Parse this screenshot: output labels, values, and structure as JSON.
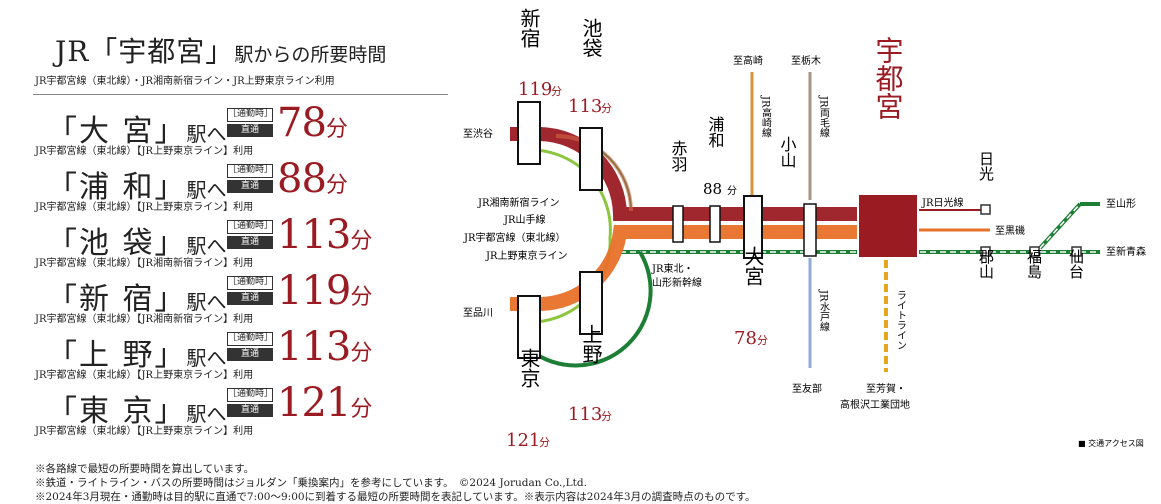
{
  "header": {
    "title_main": "JR「宇都宮」",
    "title_rest": "駅からの所要時間",
    "subtitle": "JR宇都宮線（東北線）・JR湘南新宿ライン・JR上野東京ライン利用"
  },
  "destinations": [
    {
      "name": "「大 宮」",
      "eki": "駅へ",
      "badge_top": "［通勤時］",
      "badge_bottom": "直通",
      "minutes": "78",
      "unit": "分",
      "via": "JR宇都宮線（東北線）【JR上野東京ライン】利用"
    },
    {
      "name": "「浦 和」",
      "eki": "駅へ",
      "badge_top": "［通勤時］",
      "badge_bottom": "直通",
      "minutes": "88",
      "unit": "分",
      "via": "JR宇都宮線（東北線）【JR上野東京ライン】利用"
    },
    {
      "name": "「池 袋」",
      "eki": "駅へ",
      "badge_top": "［通勤時］",
      "badge_bottom": "直通",
      "minutes": "113",
      "unit": "分",
      "via": "JR宇都宮線（東北線）【JR湘南新宿ライン】利用"
    },
    {
      "name": "「新 宿」",
      "eki": "駅へ",
      "badge_top": "［通勤時］",
      "badge_bottom": "直通",
      "minutes": "119",
      "unit": "分",
      "via": "JR宇都宮線（東北線）【JR湘南新宿ライン】利用"
    },
    {
      "name": "「上 野」",
      "eki": "駅へ",
      "badge_top": "［通勤時］",
      "badge_bottom": "直通",
      "minutes": "113",
      "unit": "分",
      "via": "JR宇都宮線（東北線）【JR上野東京ライン】利用"
    },
    {
      "name": "「東 京」",
      "eki": "駅へ",
      "badge_top": "［通勤時］",
      "badge_bottom": "直通",
      "minutes": "121",
      "unit": "分",
      "via": "JR宇都宮線（東北線）【JR上野東京ライン】利用"
    }
  ],
  "map": {
    "utsunomiya": "宇都宮",
    "stations": {
      "shinjuku": "新宿",
      "shinjuku_min": "119",
      "ikebukuro": "池袋",
      "ikebukuro_min": "113",
      "tokyo": "東京",
      "tokyo_min": "121",
      "ueno": "上野",
      "ueno_min": "113",
      "akabane": "赤羽",
      "urawa": "浦和",
      "urawa_min": "88",
      "omiya": "大宮",
      "omiya_min": "78",
      "oyama": "小山",
      "nikko": "日光",
      "koriyama": "郡山",
      "fukushima": "福島",
      "sendai": "仙台",
      "unit": "分"
    },
    "directions": {
      "shibuya": "至渋谷",
      "shinagawa": "至品川",
      "takasaki": "至高崎",
      "tochigi": "至栃木",
      "tomobe": "至友部",
      "haga": "至芳賀・",
      "haga2": "高根沢工業団地",
      "kuroiso": "至黒磯",
      "yamagata": "至山形",
      "shinaomori": "至新青森"
    },
    "lines": {
      "shonan": "JR湘南新宿ライン",
      "yamanote": "JR山手線",
      "utsunomiya": "JR宇都宮線（東北線）",
      "ueno_tokyo": "JR上野東京ライン",
      "tohoku_shinkansen": "JR東北・",
      "yamagata_shinkansen": "山形新幹線",
      "takasaki": "JR高崎線",
      "ryomo": "JR両毛線",
      "mito": "JR水戸線",
      "lightline": "ライトライン",
      "nikko": "JR日光線"
    },
    "legend": "■ 交通アクセス図",
    "colors": {
      "red": "#9b1b22",
      "orange": "#e8712a",
      "green": "#1d7f36",
      "lime": "#8cc63f",
      "tan": "#d8943b",
      "taupe": "#a89486",
      "blue": "#8fa9d8",
      "yellow": "#e8a521"
    }
  },
  "footnotes": [
    "※各路線で最短の所要時間を算出しています。",
    "※鉄道・ライトライン・バスの所要時間はジョルダン「乗換案内」を参考にしています。　©2024 Jorudan Co.,Ltd.",
    "※2024年3月現在・通勤時は目的駅に直通で7:00〜9:00に到着する最短の所要時間を表記しています。※表示内容は2024年3月の調査時点のものです。"
  ]
}
